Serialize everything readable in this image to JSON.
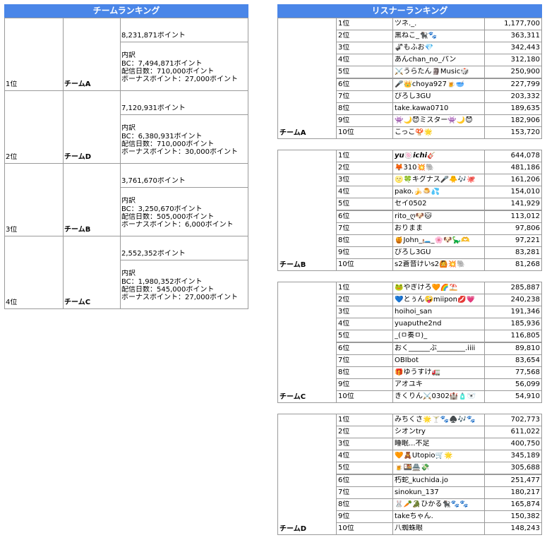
{
  "team_ranking": {
    "title": "チームランキング",
    "teams": [
      {
        "rank": "1位",
        "team": "チームA",
        "points": "8,231,871ポイント",
        "breakdown_title": "内訳",
        "lines": [
          "BC：7,494,871ポイント",
          "配信日数：710,000ポイント",
          "ボーナスポイント：27,000ポイント"
        ]
      },
      {
        "rank": "2位",
        "team": "チームD",
        "points": "7,120,931ポイント",
        "breakdown_title": "内訳",
        "lines": [
          "BC：6,380,931ポイント",
          "配信日数：710,000ポイント",
          "ボーナスポイント：30,000ポイント"
        ]
      },
      {
        "rank": "3位",
        "team": "チームB",
        "points": "3,761,670ポイント",
        "breakdown_title": "内訳",
        "lines": [
          "BC：3,250,670ポイント",
          "配信日数：505,000ポイント",
          "ボーナスポイント：6,000ポイント"
        ]
      },
      {
        "rank": "4位",
        "team": "チームC",
        "points": "2,552,352ポイント",
        "breakdown_title": "内訳",
        "lines": [
          "BC：1,980,352ポイント",
          "配信日数：545,000ポイント",
          "ボーナスポイント：27,000ポイント"
        ]
      }
    ]
  },
  "listener_ranking": {
    "title": "リスナーランキング",
    "blocks": [
      {
        "team": "チームA",
        "rows": [
          [
            "1位",
            "ツネ._.",
            "1,177,700"
          ],
          [
            "2位",
            "黒ねこ_🐈‍⬛🐾",
            "363,311"
          ],
          [
            "3位",
            "🦨もふお💎",
            "342,443"
          ],
          [
            "4位",
            "あんchan_no_パン",
            "312,180"
          ],
          [
            "5位",
            "⚔️うらたん🗿Music🎲",
            "250,900"
          ],
          [
            "6位",
            "🎤👑choya927🍺🥣",
            "227,799"
          ],
          [
            "7位",
            "ぴろし3GU",
            "203,332"
          ],
          [
            "8位",
            "take.kawa0710",
            "189,635"
          ],
          [
            "9位",
            "👾🌙😈ミスター👾🌙😈",
            "182,906"
          ],
          [
            "10位",
            "こっこ🍄🌟",
            "153,720"
          ]
        ]
      },
      {
        "team": "チームB",
        "rows": [
          [
            "1位",
            "𝙮𝙪🍥𝙞𝙘𝙝𝙞🎸",
            "644,078"
          ],
          [
            "2位",
            "🦊310💥🐘",
            "481,186"
          ],
          [
            "3位",
            "🌝🍀キグナス🎤🐥🎶🐙",
            "161,206"
          ],
          [
            "4位",
            "pako.🍌🍮💦",
            "154,010"
          ],
          [
            "5位",
            "セイ0502",
            "141,929"
          ],
          [
            "6位",
            "rito_ღ🐶🐱",
            "113,012"
          ],
          [
            "7位",
            "おりまま",
            "97,806"
          ],
          [
            "8位",
            "🍯John_🛏️_🌸🐶🦕🫶",
            "97,221"
          ],
          [
            "9位",
            "ぴろし3GU",
            "83,281"
          ],
          [
            "10位",
            "s2蒼音けいs2🙆💥🐘",
            "81,268"
          ]
        ]
      },
      {
        "team": "チームC",
        "rows": [
          [
            "1位",
            "🐸やぎけろ🧡🌈⛱️",
            "285,887"
          ],
          [
            "2位",
            "💙とぅん🤪miipon💋💗",
            "240,238"
          ],
          [
            "3位",
            "hoihoi_san",
            "191,346"
          ],
          [
            "4位",
            "yuaputhe2nd",
            "185,936"
          ],
          [
            "5位",
            "_(ㅁ奏ㅁ)_",
            "116,805"
          ],
          [
            "6位",
            "おく______ぶ________.iiii",
            "89,810"
          ],
          [
            "7位",
            "OBIbot",
            "83,654"
          ],
          [
            "8位",
            "🎁ゆうすけ🚛",
            "77,568"
          ],
          [
            "9位",
            "アオユキ",
            "56,099"
          ],
          [
            "10位",
            "きくりん⚔️0302🏰🧴🐻‍❄️",
            "54,910"
          ]
        ]
      },
      {
        "team": "チームD",
        "rows": [
          [
            "1位",
            "みちくさ🌟🍸🐾♠️🎶🐾",
            "702,773"
          ],
          [
            "2位",
            "シオンtry",
            "611,022"
          ],
          [
            "3位",
            "睡眠...不足",
            "400,750"
          ],
          [
            "4位",
            "🧡🧸Utopio🛒🌟",
            "345,189"
          ],
          [
            "5位",
            "🍺🍱🏯💸",
            "305,688"
          ],
          [
            "6位",
            "朽蛇_kuchida.jo",
            "251,477"
          ],
          [
            "7位",
            "sinokun_137",
            "180,217"
          ],
          [
            "8位",
            "🐰🥕🐊ひかる🐈‍⬛🐾🐾",
            "165,874"
          ],
          [
            "9位",
            "takeちゃん.",
            "150,382"
          ],
          [
            "10位",
            "八蜘蛛眼",
            "148,243"
          ]
        ]
      }
    ]
  }
}
